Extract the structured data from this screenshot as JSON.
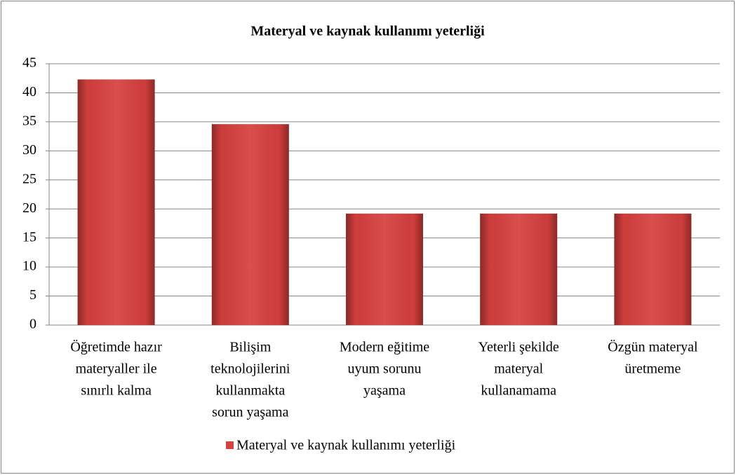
{
  "chart_data": {
    "type": "bar",
    "title": "Materyal ve kaynak kullanımı yeterliği",
    "categories": [
      [
        "Öğretimde hazır",
        "materyaller ile",
        "sınırlı kalma"
      ],
      [
        "Bilişim",
        "teknolojilerini",
        "kullanmakta",
        "sorun yaşama"
      ],
      [
        "Modern eğitime",
        "uyum sorunu",
        "yaşama"
      ],
      [
        "Yeterli şekilde",
        "materyal",
        "kullanamama"
      ],
      [
        "Özgün materyal",
        "üretmeme"
      ]
    ],
    "series": [
      {
        "name": "Materyal ve kaynak kullanımı yeterliği",
        "color": "#d6403e",
        "values": [
          42.3,
          34.6,
          19.2,
          19.2,
          19.2
        ]
      }
    ],
    "ylim": [
      0,
      45
    ],
    "yticks": [
      0,
      5,
      10,
      15,
      20,
      25,
      30,
      35,
      40,
      45
    ],
    "grid": true,
    "legend": "bottom"
  }
}
